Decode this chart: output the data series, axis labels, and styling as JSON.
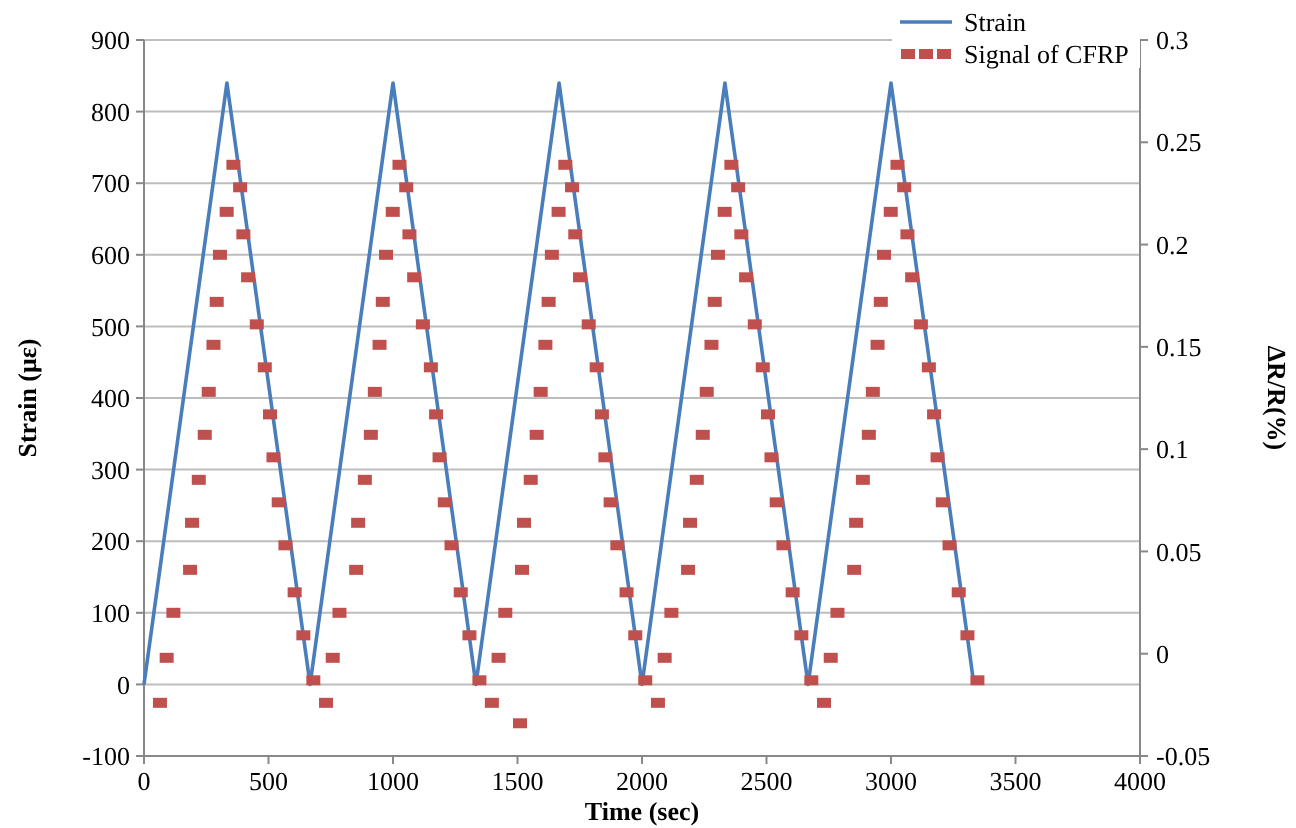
{
  "chart_data": {
    "type": "line",
    "xlabel": "Time (sec)",
    "ylabel": "Strain (με)",
    "y2label": "ΔR/R(%)",
    "xlim": [
      0,
      4000
    ],
    "xticks": [
      0,
      500,
      1000,
      1500,
      2000,
      2500,
      3000,
      3500,
      4000
    ],
    "ylim": [
      -100,
      900
    ],
    "yticks": [
      -100,
      0,
      100,
      200,
      300,
      400,
      500,
      600,
      700,
      800,
      900
    ],
    "y2lim": [
      -0.05,
      0.3
    ],
    "y2ticks": [
      -0.05,
      0,
      0.05,
      0.1,
      0.15,
      0.2,
      0.25,
      0.3
    ],
    "grid": "y",
    "legend": "top right",
    "series": [
      {
        "name": "Strain",
        "color": "#4a7ebb",
        "x": [
          0,
          333,
          667,
          1000,
          1333,
          1667,
          2000,
          2333,
          2667,
          3000,
          3333
        ],
        "values": [
          0,
          840,
          0,
          840,
          0,
          840,
          0,
          840,
          0,
          840,
          0
        ]
      },
      {
        "name": "Signal of CFRP",
        "type": "scatter",
        "axis": "y2",
        "marker": "square",
        "color": "#c0504d",
        "x": [
          64,
          91,
          118,
          185,
          193,
          220,
          244,
          260,
          279,
          292,
          305,
          332,
          359,
          386,
          399,
          418,
          453,
          485,
          506,
          520,
          541,
          568,
          605,
          640,
          680,
          731,
          758,
          785,
          852,
          860,
          887,
          911,
          927,
          946,
          959,
          972,
          999,
          1026,
          1053,
          1066,
          1085,
          1120,
          1152,
          1173,
          1187,
          1208,
          1235,
          1272,
          1307,
          1347,
          1397,
          1424,
          1451,
          1510,
          1518,
          1526,
          1553,
          1577,
          1593,
          1612,
          1625,
          1638,
          1665,
          1692,
          1719,
          1732,
          1751,
          1786,
          1818,
          1839,
          1853,
          1874,
          1901,
          1938,
          1973,
          2013,
          2064,
          2091,
          2118,
          2185,
          2193,
          2220,
          2244,
          2260,
          2279,
          2292,
          2305,
          2332,
          2359,
          2386,
          2399,
          2418,
          2453,
          2485,
          2506,
          2520,
          2541,
          2568,
          2605,
          2640,
          2680,
          2731,
          2758,
          2785,
          2852,
          2860,
          2887,
          2911,
          2927,
          2946,
          2959,
          2972,
          2999,
          3026,
          3053,
          3066,
          3085,
          3120,
          3152,
          3173,
          3187,
          3208,
          3235,
          3272,
          3307,
          3347
        ],
        "values": [
          -0.024,
          -0.002,
          0.02,
          0.041,
          0.064,
          0.085,
          0.107,
          0.128,
          0.151,
          0.172,
          0.195,
          0.216,
          0.239,
          0.228,
          0.205,
          0.184,
          0.161,
          0.14,
          0.117,
          0.096,
          0.074,
          0.053,
          0.03,
          0.009,
          -0.013,
          -0.024,
          -0.002,
          0.02,
          0.041,
          0.064,
          0.085,
          0.107,
          0.128,
          0.151,
          0.172,
          0.195,
          0.216,
          0.239,
          0.228,
          0.205,
          0.184,
          0.161,
          0.14,
          0.117,
          0.096,
          0.074,
          0.053,
          0.03,
          0.009,
          -0.013,
          -0.024,
          -0.002,
          0.02,
          -0.034,
          0.041,
          0.064,
          0.085,
          0.107,
          0.128,
          0.151,
          0.172,
          0.195,
          0.216,
          0.239,
          0.228,
          0.205,
          0.184,
          0.161,
          0.14,
          0.117,
          0.096,
          0.074,
          0.053,
          0.03,
          0.009,
          -0.013,
          -0.024,
          -0.002,
          0.02,
          0.041,
          0.064,
          0.085,
          0.107,
          0.128,
          0.151,
          0.172,
          0.195,
          0.216,
          0.239,
          0.228,
          0.205,
          0.184,
          0.161,
          0.14,
          0.117,
          0.096,
          0.074,
          0.053,
          0.03,
          0.009,
          -0.013,
          -0.024,
          -0.002,
          0.02,
          0.041,
          0.064,
          0.085,
          0.107,
          0.128,
          0.151,
          0.172,
          0.195,
          0.216,
          0.239,
          0.228,
          0.205,
          0.184,
          0.161,
          0.14,
          0.117,
          0.096,
          0.074,
          0.053,
          0.03,
          0.009,
          -0.013
        ]
      }
    ]
  }
}
